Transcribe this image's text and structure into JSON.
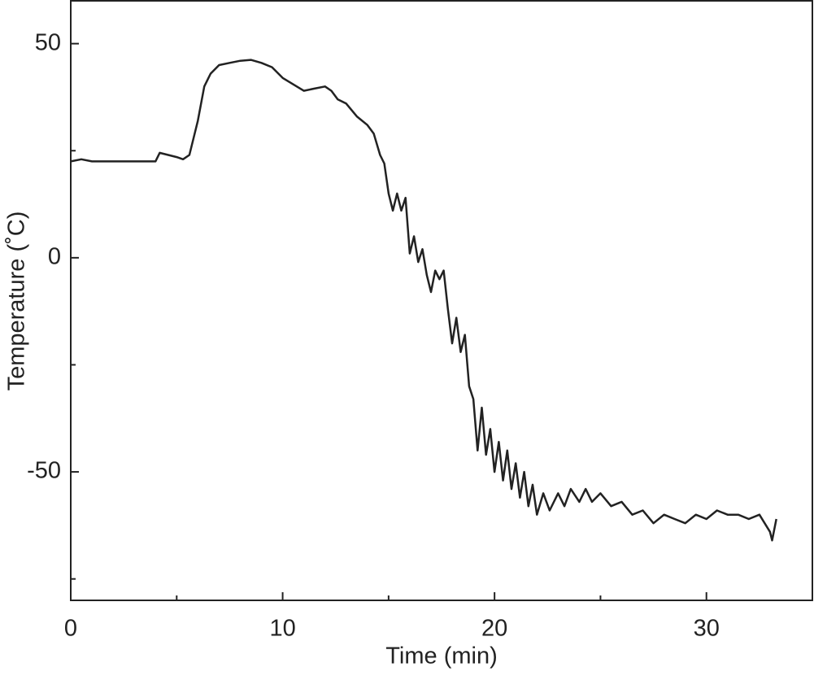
{
  "chart_data": {
    "type": "line",
    "xlabel": "Time (min)",
    "ylabel": "Temperature (˚C)",
    "xlim": [
      0,
      35
    ],
    "xticks": [
      0,
      10,
      20,
      30
    ],
    "xminorticks": [
      5,
      15,
      25
    ],
    "ylim": [
      -80,
      60
    ],
    "yticks": [
      -50,
      0,
      50
    ],
    "yminorticks": [
      -75,
      -25,
      25
    ],
    "color": "#222222",
    "x": [
      0,
      0.5,
      1,
      2,
      3,
      4,
      4.2,
      4.6,
      5,
      5.3,
      5.6,
      5.8,
      6.0,
      6.3,
      6.6,
      7,
      7.5,
      8,
      8.5,
      9,
      9.5,
      10,
      10.5,
      11,
      11.5,
      12,
      12.3,
      12.6,
      13,
      13.5,
      14,
      14.3,
      14.6,
      14.8,
      15,
      15.2,
      15.4,
      15.6,
      15.8,
      16,
      16.2,
      16.4,
      16.6,
      16.8,
      17,
      17.2,
      17.4,
      17.6,
      17.8,
      18,
      18.2,
      18.4,
      18.6,
      18.8,
      19,
      19.2,
      19.4,
      19.6,
      19.8,
      20,
      20.2,
      20.4,
      20.6,
      20.8,
      21,
      21.2,
      21.4,
      21.6,
      21.8,
      22,
      22.3,
      22.6,
      23,
      23.3,
      23.6,
      24,
      24.3,
      24.6,
      25,
      25.5,
      26,
      26.5,
      27,
      27.5,
      28,
      28.5,
      29,
      29.5,
      30,
      30.5,
      31,
      31.5,
      32,
      32.5,
      33,
      33.1,
      33.3
    ],
    "values": [
      22.5,
      23,
      22.5,
      22.5,
      22.5,
      22.5,
      24.5,
      24,
      23.5,
      23,
      24,
      28,
      32,
      40,
      43,
      45,
      45.5,
      46,
      46.2,
      45.5,
      44.5,
      42,
      40.5,
      39,
      39.5,
      40,
      39,
      37,
      36,
      33,
      31,
      29,
      24,
      22,
      15,
      11,
      15,
      11,
      14,
      1,
      5,
      -1,
      2,
      -4,
      -8,
      -3,
      -5,
      -3,
      -12,
      -20,
      -14,
      -22,
      -18,
      -30,
      -33,
      -45,
      -35,
      -46,
      -40,
      -50,
      -43,
      -52,
      -45,
      -54,
      -48,
      -56,
      -50,
      -58,
      -53,
      -60,
      -55,
      -59,
      -55,
      -58,
      -54,
      -57,
      -54,
      -57,
      -55,
      -58,
      -57,
      -60,
      -59,
      -62,
      -60,
      -61,
      -62,
      -60,
      -61,
      -59,
      -60,
      -60,
      -61,
      -60,
      -64,
      -66,
      -61
    ]
  }
}
